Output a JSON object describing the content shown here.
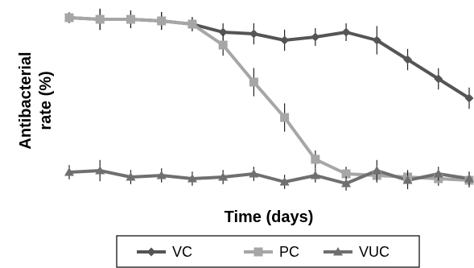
{
  "chart_data": {
    "type": "line",
    "title": "",
    "xlabel": "Time (days)",
    "ylabel_lines": [
      "Antibacterial",
      "rate (%)"
    ],
    "x": [
      0,
      1,
      2,
      3,
      4,
      5,
      6,
      7,
      8,
      9,
      10,
      11,
      12,
      13
    ],
    "ylim": [
      0,
      100
    ],
    "grid": false,
    "axes_lines": false,
    "tick_labels": false,
    "error_bars": true,
    "legend": {
      "placement": "bottom",
      "boxed": true
    },
    "series": [
      {
        "name": "VC",
        "marker": "diamond",
        "color": "#555555",
        "values": [
          99,
          98,
          98,
          97,
          95,
          90,
          89,
          85,
          87,
          90,
          85,
          73,
          61,
          49
        ],
        "errors": [
          1.5,
          3,
          2.5,
          2.5,
          2,
          2.5,
          3,
          3,
          2.5,
          2.5,
          4,
          3,
          3,
          3
        ]
      },
      {
        "name": "PC",
        "marker": "square",
        "color": "#a6a6a6",
        "values": [
          99,
          98,
          98,
          97,
          95,
          82,
          59,
          37,
          11,
          2,
          1,
          0,
          -1,
          -2
        ],
        "errors": [
          1.5,
          3,
          2.5,
          2.5,
          2,
          3,
          4,
          4,
          2.5,
          2,
          2,
          2,
          2,
          2
        ]
      },
      {
        "name": "VUC",
        "marker": "triangle",
        "color": "#6f6f6f",
        "values": [
          3,
          4,
          0,
          1,
          -1,
          0,
          2,
          -3,
          1,
          -4,
          4,
          -2,
          2,
          -1
        ],
        "errors": [
          2,
          3,
          2,
          2,
          2,
          2,
          2,
          2,
          2,
          2,
          3,
          2.5,
          2,
          2
        ]
      }
    ]
  }
}
